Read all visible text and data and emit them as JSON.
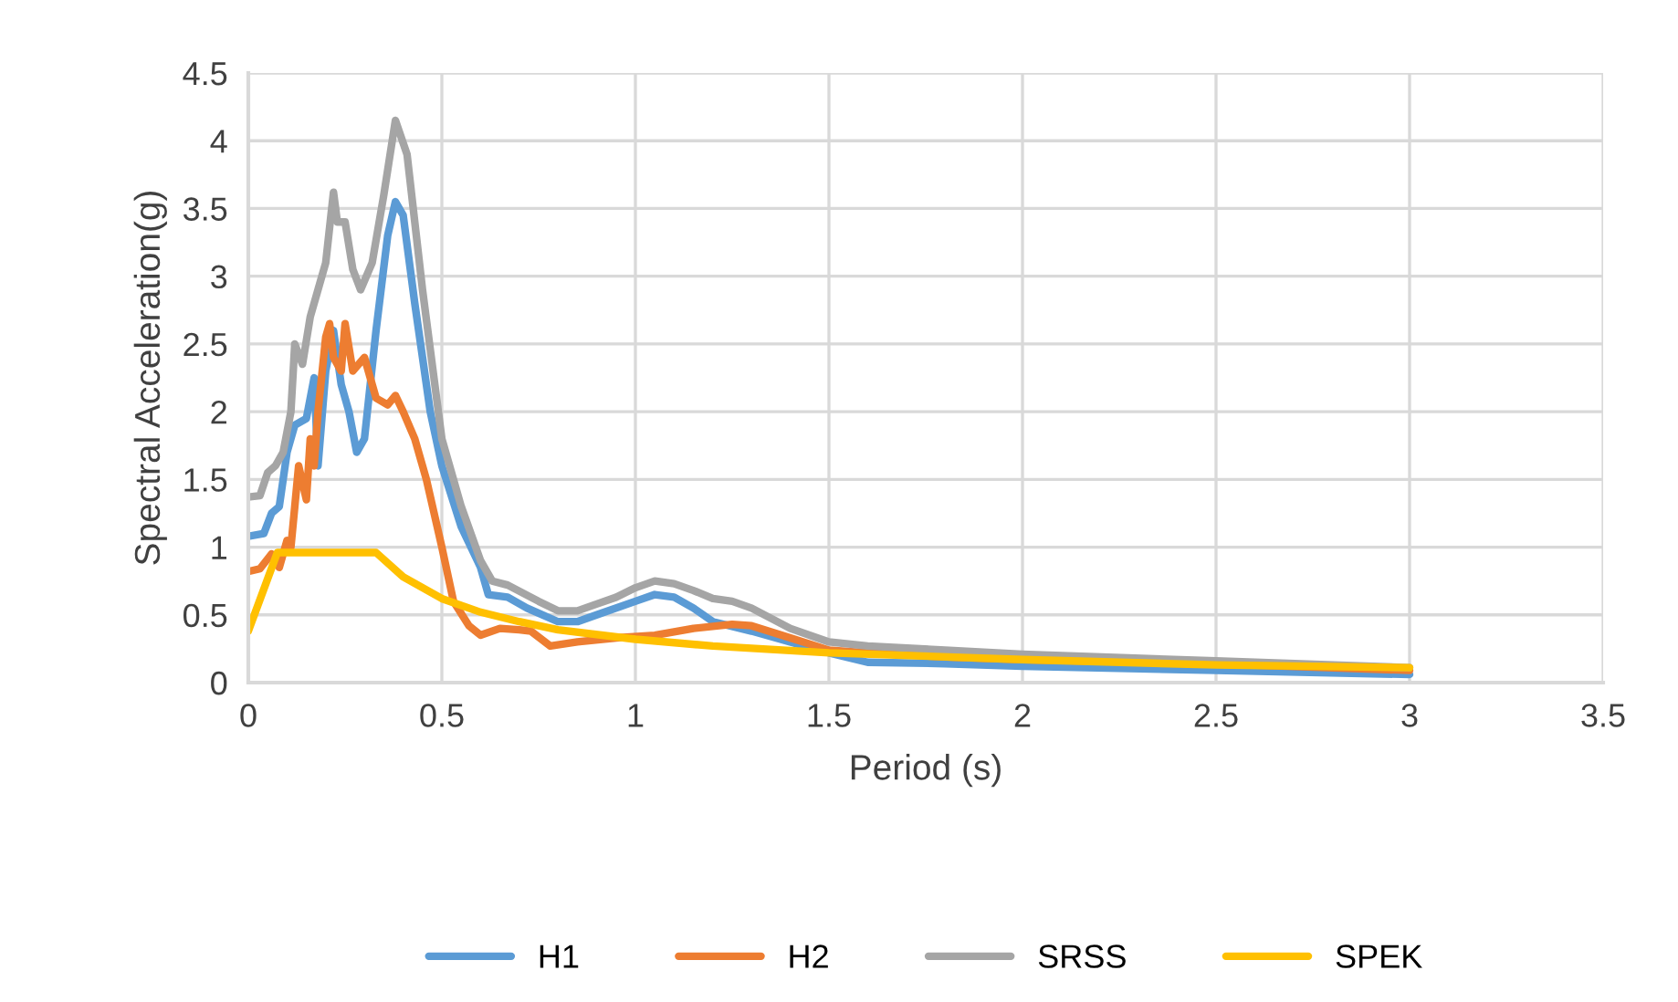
{
  "chart_data": {
    "type": "line",
    "xlabel": "Period (s)",
    "ylabel": "Spectral Acceleration(g)",
    "xlim": [
      0,
      3.5
    ],
    "xticks": [
      0,
      0.5,
      1,
      1.5,
      2,
      2.5,
      3,
      3.5
    ],
    "ylim": [
      0,
      4.5
    ],
    "yticks": [
      0,
      0.5,
      1,
      1.5,
      2,
      2.5,
      3,
      3.5,
      4,
      4.5
    ],
    "grid": true,
    "legend": "bottom",
    "marker": "none",
    "line_style": "solid",
    "series": [
      {
        "name": "H1",
        "color": "#5b9bd5",
        "x": [
          0,
          0.04,
          0.06,
          0.08,
          0.1,
          0.12,
          0.15,
          0.17,
          0.18,
          0.2,
          0.22,
          0.24,
          0.26,
          0.28,
          0.3,
          0.33,
          0.36,
          0.38,
          0.4,
          0.43,
          0.47,
          0.5,
          0.55,
          0.6,
          0.62,
          0.67,
          0.72,
          0.8,
          0.85,
          0.9,
          1.0,
          1.05,
          1.1,
          1.15,
          1.2,
          1.3,
          1.4,
          1.5,
          1.6,
          1.8,
          2,
          2.5,
          3
        ],
        "values": [
          1.08,
          1.1,
          1.25,
          1.3,
          1.7,
          1.9,
          1.95,
          2.25,
          1.6,
          2.3,
          2.6,
          2.2,
          2.0,
          1.7,
          1.8,
          2.6,
          3.3,
          3.55,
          3.45,
          2.8,
          2.0,
          1.6,
          1.15,
          0.85,
          0.65,
          0.63,
          0.55,
          0.45,
          0.45,
          0.5,
          0.6,
          0.65,
          0.63,
          0.55,
          0.45,
          0.38,
          0.3,
          0.22,
          0.15,
          0.14,
          0.12,
          0.09,
          0.06
        ]
      },
      {
        "name": "H2",
        "color": "#ed7d31",
        "x": [
          0,
          0.03,
          0.06,
          0.08,
          0.1,
          0.11,
          0.12,
          0.13,
          0.15,
          0.16,
          0.17,
          0.18,
          0.2,
          0.21,
          0.22,
          0.24,
          0.25,
          0.27,
          0.3,
          0.33,
          0.36,
          0.38,
          0.4,
          0.43,
          0.46,
          0.5,
          0.53,
          0.57,
          0.6,
          0.65,
          0.7,
          0.73,
          0.78,
          0.85,
          0.95,
          1.05,
          1.15,
          1.25,
          1.3,
          1.4,
          1.5,
          1.6,
          1.8,
          2,
          2.5,
          3
        ],
        "values": [
          0.82,
          0.84,
          0.95,
          0.85,
          1.05,
          1.0,
          1.3,
          1.6,
          1.35,
          1.8,
          1.6,
          2.0,
          2.55,
          2.65,
          2.4,
          2.3,
          2.65,
          2.3,
          2.4,
          2.1,
          2.05,
          2.12,
          2.0,
          1.8,
          1.5,
          1.0,
          0.6,
          0.42,
          0.35,
          0.4,
          0.39,
          0.38,
          0.27,
          0.3,
          0.33,
          0.35,
          0.4,
          0.43,
          0.42,
          0.33,
          0.24,
          0.22,
          0.19,
          0.17,
          0.14,
          0.09
        ]
      },
      {
        "name": "SRSS",
        "color": "#a5a5a5",
        "x": [
          0,
          0.03,
          0.05,
          0.07,
          0.09,
          0.11,
          0.12,
          0.14,
          0.16,
          0.18,
          0.2,
          0.22,
          0.23,
          0.25,
          0.27,
          0.29,
          0.32,
          0.35,
          0.38,
          0.41,
          0.45,
          0.5,
          0.55,
          0.6,
          0.63,
          0.67,
          0.75,
          0.8,
          0.85,
          0.9,
          0.95,
          1.0,
          1.05,
          1.1,
          1.15,
          1.2,
          1.25,
          1.3,
          1.4,
          1.5,
          1.6,
          1.8,
          2,
          2.5,
          3
        ],
        "values": [
          1.37,
          1.38,
          1.55,
          1.6,
          1.7,
          2.0,
          2.5,
          2.35,
          2.7,
          2.9,
          3.1,
          3.62,
          3.4,
          3.4,
          3.05,
          2.9,
          3.1,
          3.6,
          4.15,
          3.9,
          2.9,
          1.8,
          1.3,
          0.9,
          0.75,
          0.72,
          0.6,
          0.53,
          0.53,
          0.58,
          0.63,
          0.7,
          0.75,
          0.73,
          0.68,
          0.62,
          0.6,
          0.55,
          0.4,
          0.3,
          0.27,
          0.24,
          0.21,
          0.16,
          0.11
        ]
      },
      {
        "name": "SPEK",
        "color": "#ffc000",
        "x": [
          0,
          0.075,
          0.33,
          0.4,
          0.5,
          0.6,
          0.7,
          0.8,
          1.0,
          1.2,
          1.5,
          2,
          2.5,
          3
        ],
        "values": [
          0.38,
          0.96,
          0.96,
          0.78,
          0.62,
          0.52,
          0.45,
          0.39,
          0.32,
          0.27,
          0.22,
          0.17,
          0.13,
          0.11
        ]
      }
    ]
  }
}
